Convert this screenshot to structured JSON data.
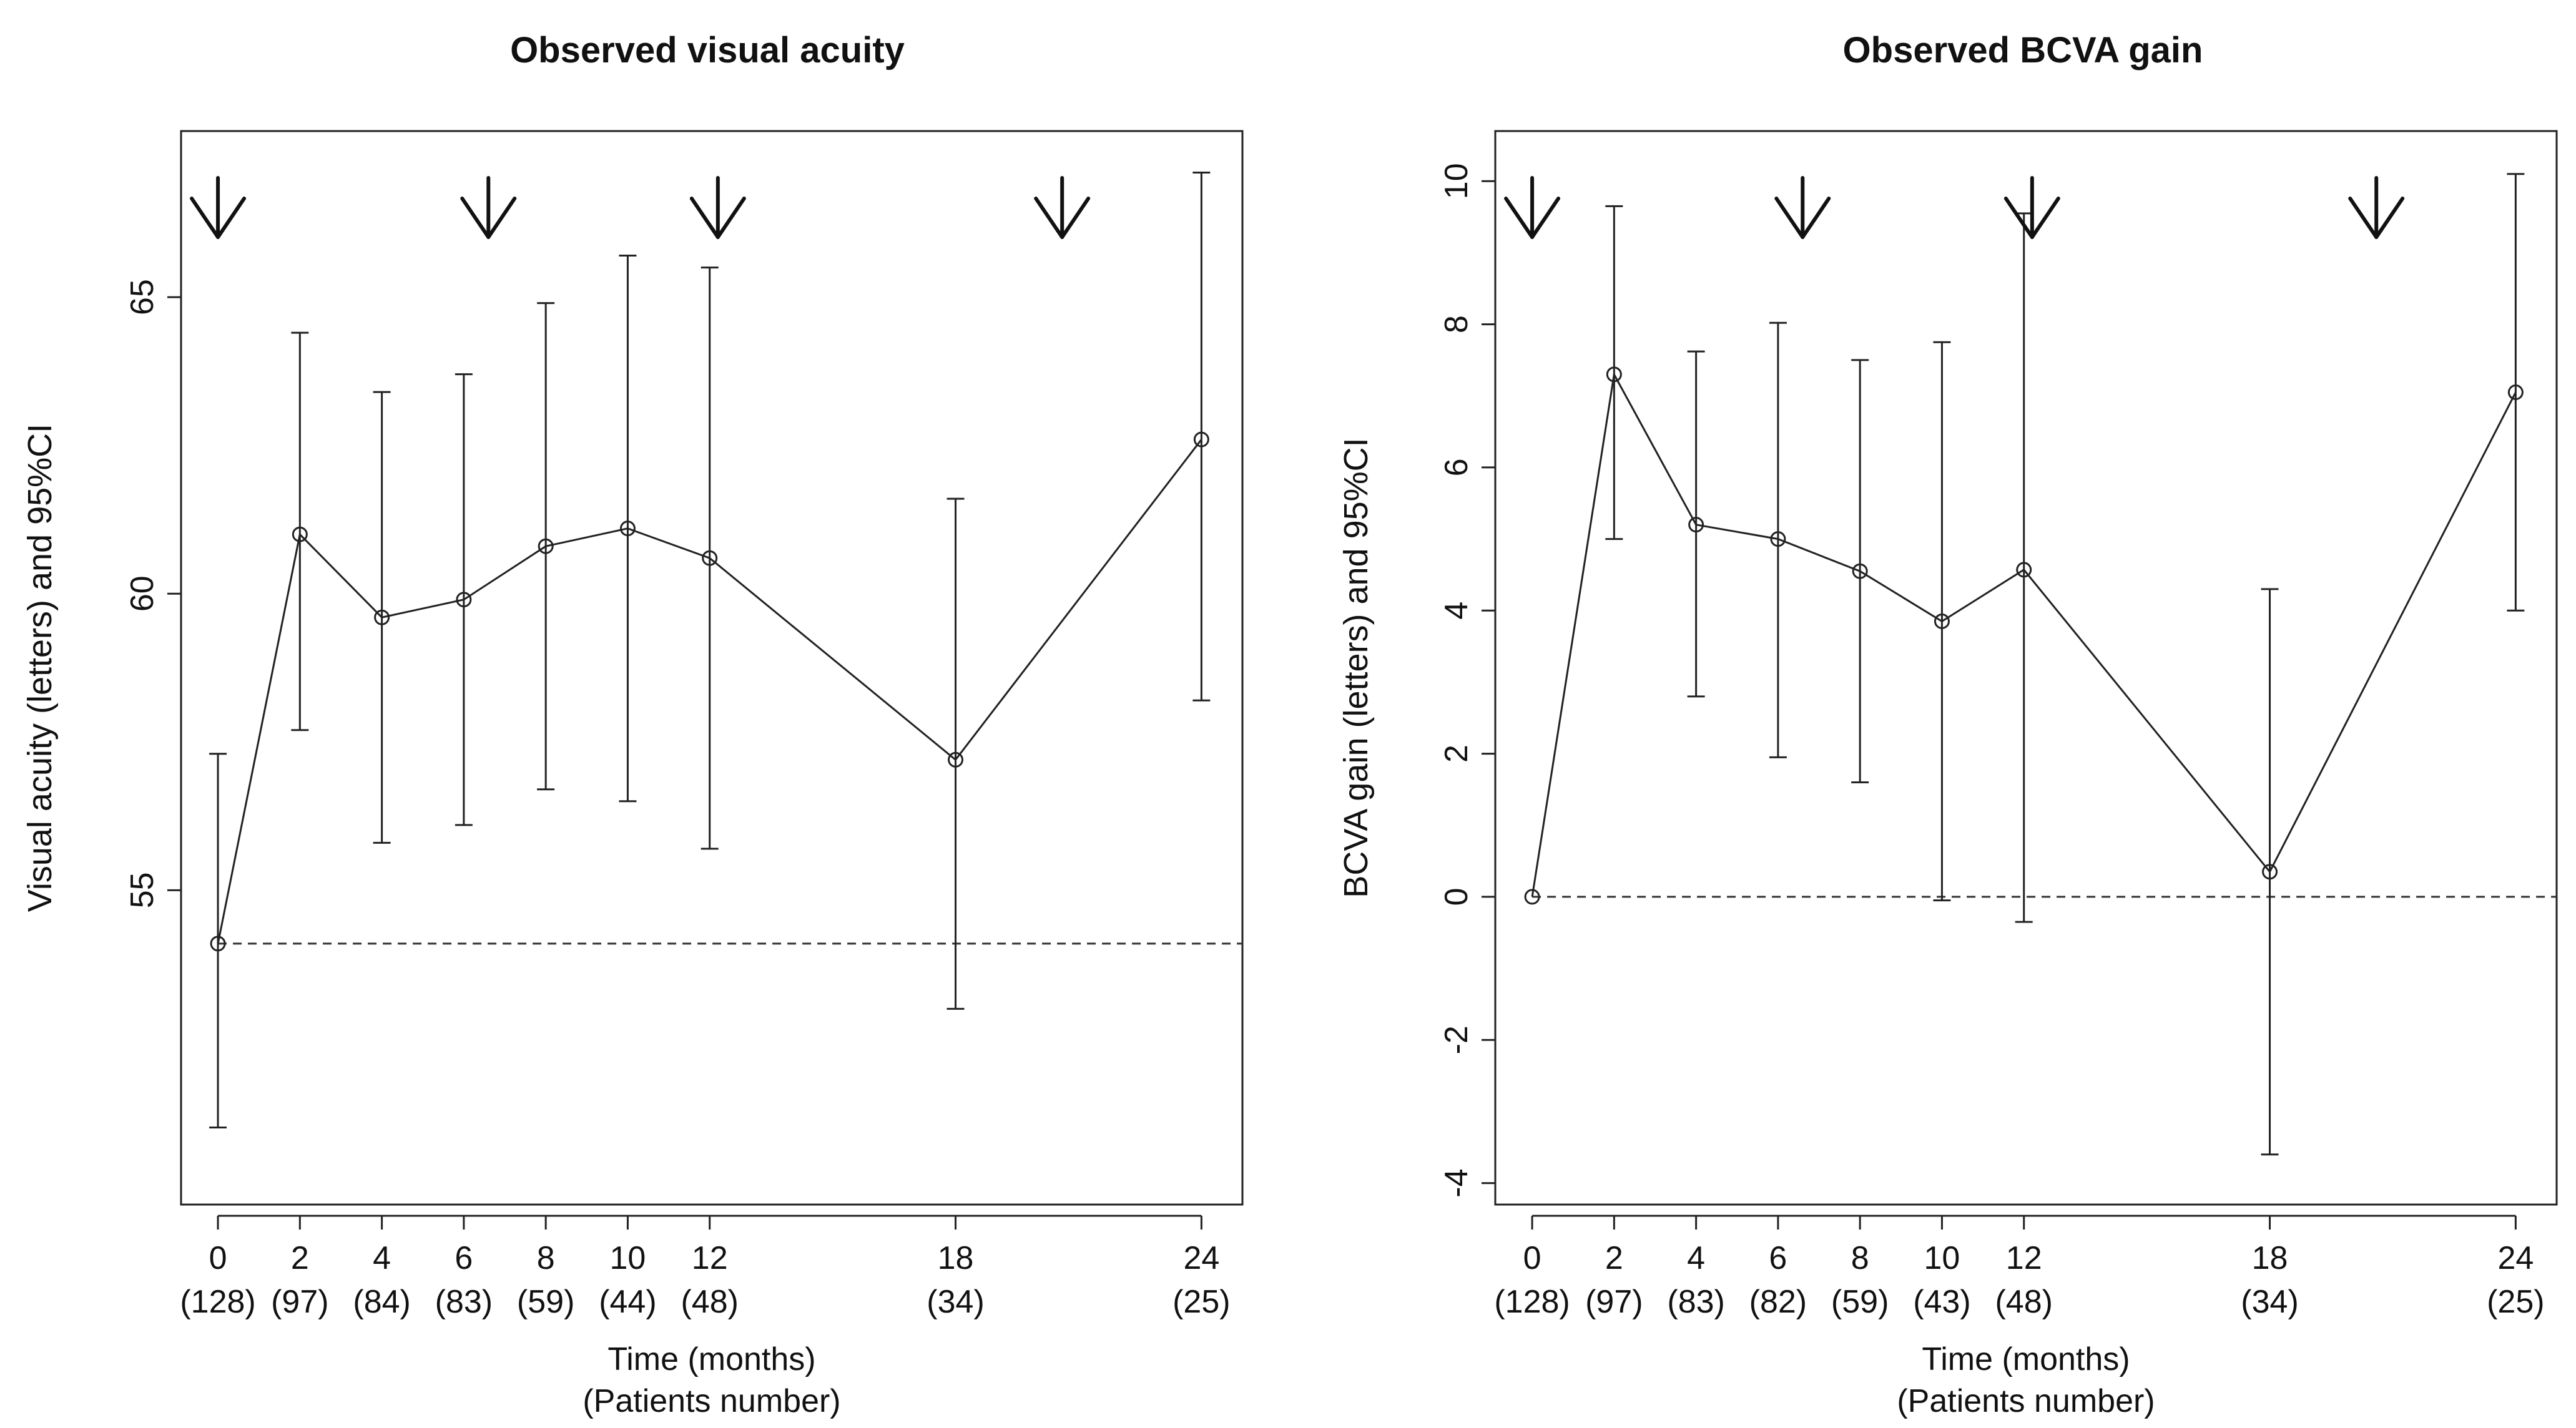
{
  "chart_data": [
    {
      "type": "line",
      "title": "Observed visual acuity",
      "xlabel": "Time (months)",
      "xlabel2": "(Patients number)",
      "ylabel": "Visual acuity (letters) and 95%CI",
      "x": [
        0,
        2,
        4,
        6,
        8,
        10,
        12,
        18,
        24
      ],
      "x_tick_labels": [
        "0",
        "2",
        "4",
        "6",
        "8",
        "10",
        "12",
        "18",
        "24"
      ],
      "patients": [
        "(128)",
        "(97)",
        "(84)",
        "(83)",
        "(59)",
        "(44)",
        "(48)",
        "(34)",
        "(25)"
      ],
      "values": [
        54.1,
        61.0,
        59.6,
        59.9,
        60.8,
        61.1,
        60.6,
        57.2,
        62.6
      ],
      "ci_lower": [
        51.0,
        57.7,
        55.8,
        56.1,
        56.7,
        56.5,
        55.7,
        53.0,
        58.2
      ],
      "ci_upper": [
        57.3,
        64.4,
        63.4,
        63.7,
        64.9,
        65.7,
        65.5,
        61.6,
        67.1
      ],
      "y_ticks": [
        55,
        60,
        65
      ],
      "y_tick_labels": [
        "55",
        "60",
        "65"
      ],
      "xlim": [
        -0.9,
        25.0
      ],
      "ylim": [
        49.7,
        67.8
      ],
      "reference_line": 54.1,
      "arrows_at_x": [
        0,
        6.6,
        12.2,
        20.6
      ],
      "grid": false
    },
    {
      "type": "line",
      "title": "Observed BCVA gain",
      "xlabel": "Time (months)",
      "xlabel2": "(Patients number)",
      "ylabel": "BCVA gain (letters) and 95%CI",
      "x": [
        0,
        2,
        4,
        6,
        8,
        10,
        12,
        18,
        24
      ],
      "x_tick_labels": [
        "0",
        "2",
        "4",
        "6",
        "8",
        "10",
        "12",
        "18",
        "24"
      ],
      "patients": [
        "(128)",
        "(97)",
        "(83)",
        "(82)",
        "(59)",
        "(43)",
        "(48)",
        "(34)",
        "(25)"
      ],
      "values": [
        0.0,
        7.3,
        5.2,
        5.0,
        4.55,
        3.85,
        4.57,
        0.35,
        7.05
      ],
      "ci_lower": [
        0.0,
        5.0,
        2.8,
        1.95,
        1.6,
        -0.05,
        -0.35,
        -3.6,
        4.0
      ],
      "ci_upper": [
        0.0,
        9.65,
        7.62,
        8.02,
        7.5,
        7.75,
        9.55,
        4.3,
        10.1
      ],
      "y_ticks": [
        -4,
        -2,
        0,
        2,
        4,
        6,
        8,
        10
      ],
      "y_tick_labels": [
        "-4",
        "-2",
        "0",
        "2",
        "4",
        "6",
        "8",
        "10"
      ],
      "xlim": [
        -0.9,
        25.0
      ],
      "ylim": [
        -4.3,
        10.7
      ],
      "reference_line": 0,
      "arrows_at_x": [
        0,
        6.6,
        12.2,
        20.6
      ],
      "grid": false
    }
  ]
}
